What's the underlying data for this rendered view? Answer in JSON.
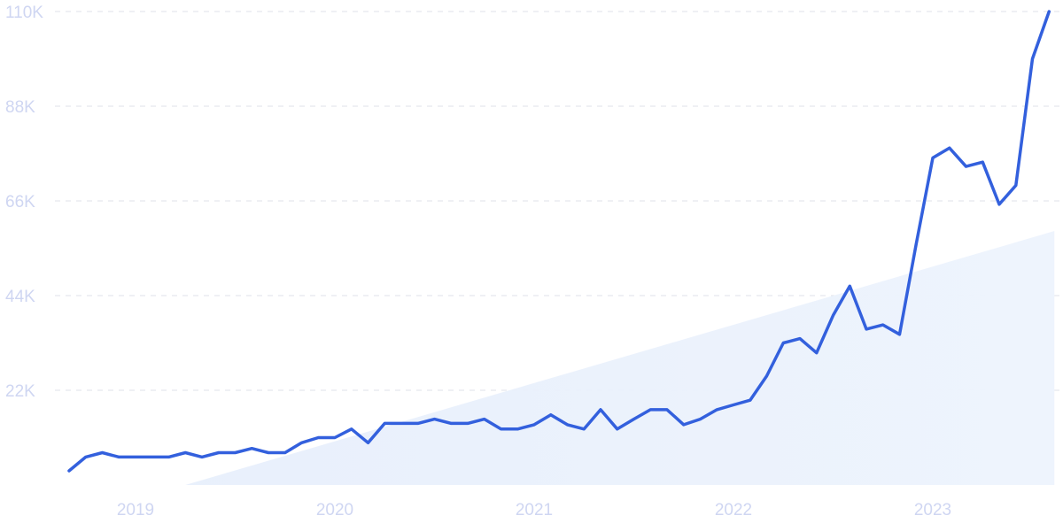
{
  "chart_data": {
    "type": "line",
    "title": "",
    "xlabel": "",
    "ylabel": "",
    "x_tick_labels": [
      "2019",
      "2020",
      "2021",
      "2022",
      "2023"
    ],
    "y_tick_labels": [
      "110K",
      "88K",
      "66K",
      "44K",
      "22K"
    ],
    "y_tick_values": [
      110000,
      88000,
      66000,
      44000,
      22000
    ],
    "ylim": [
      0,
      110000
    ],
    "xlim": [
      "2018-09",
      "2023-08"
    ],
    "grid": true,
    "trend_area": {
      "description_hidden": true,
      "start": {
        "x": "2019-04",
        "y": 0
      },
      "end": {
        "x": "2023-08",
        "y": 59000
      }
    },
    "colors": {
      "line": "#3360dd",
      "tick_text": "#cfd6f2",
      "grid": "#dfe2e8",
      "trend_fill": "#e8f0fb"
    },
    "series": [
      {
        "x": [
          "2018-09",
          "2018-10",
          "2018-11",
          "2018-12",
          "2019-01",
          "2019-02",
          "2019-03",
          "2019-04",
          "2019-05",
          "2019-06",
          "2019-07",
          "2019-08",
          "2019-09",
          "2019-10",
          "2019-11",
          "2019-12",
          "2020-01",
          "2020-02",
          "2020-03",
          "2020-04",
          "2020-05",
          "2020-06",
          "2020-07",
          "2020-08",
          "2020-09",
          "2020-10",
          "2020-11",
          "2020-12",
          "2021-01",
          "2021-02",
          "2021-03",
          "2021-04",
          "2021-05",
          "2021-06",
          "2021-07",
          "2021-08",
          "2021-09",
          "2021-10",
          "2021-11",
          "2021-12",
          "2022-01",
          "2022-02",
          "2022-03",
          "2022-04",
          "2022-05",
          "2022-06",
          "2022-07",
          "2022-08",
          "2022-09",
          "2022-10",
          "2022-11",
          "2022-12",
          "2023-01",
          "2023-02",
          "2023-03",
          "2023-04",
          "2023-05",
          "2023-06",
          "2023-07",
          "2023-08"
        ],
        "values": [
          3300,
          6500,
          7500,
          6500,
          6500,
          6500,
          6500,
          7500,
          6500,
          7500,
          7500,
          8500,
          7500,
          7500,
          9800,
          11000,
          11000,
          13000,
          9800,
          14300,
          14300,
          14300,
          15300,
          14300,
          14300,
          15300,
          13000,
          13000,
          14000,
          16300,
          14000,
          13000,
          17500,
          13000,
          15300,
          17500,
          17500,
          14000,
          15300,
          17500,
          18600,
          19700,
          25300,
          33000,
          34000,
          30700,
          39400,
          46200,
          36200,
          37200,
          35000,
          56000,
          76000,
          78300,
          74000,
          75000,
          65200,
          69600,
          99000,
          110000
        ]
      }
    ]
  }
}
